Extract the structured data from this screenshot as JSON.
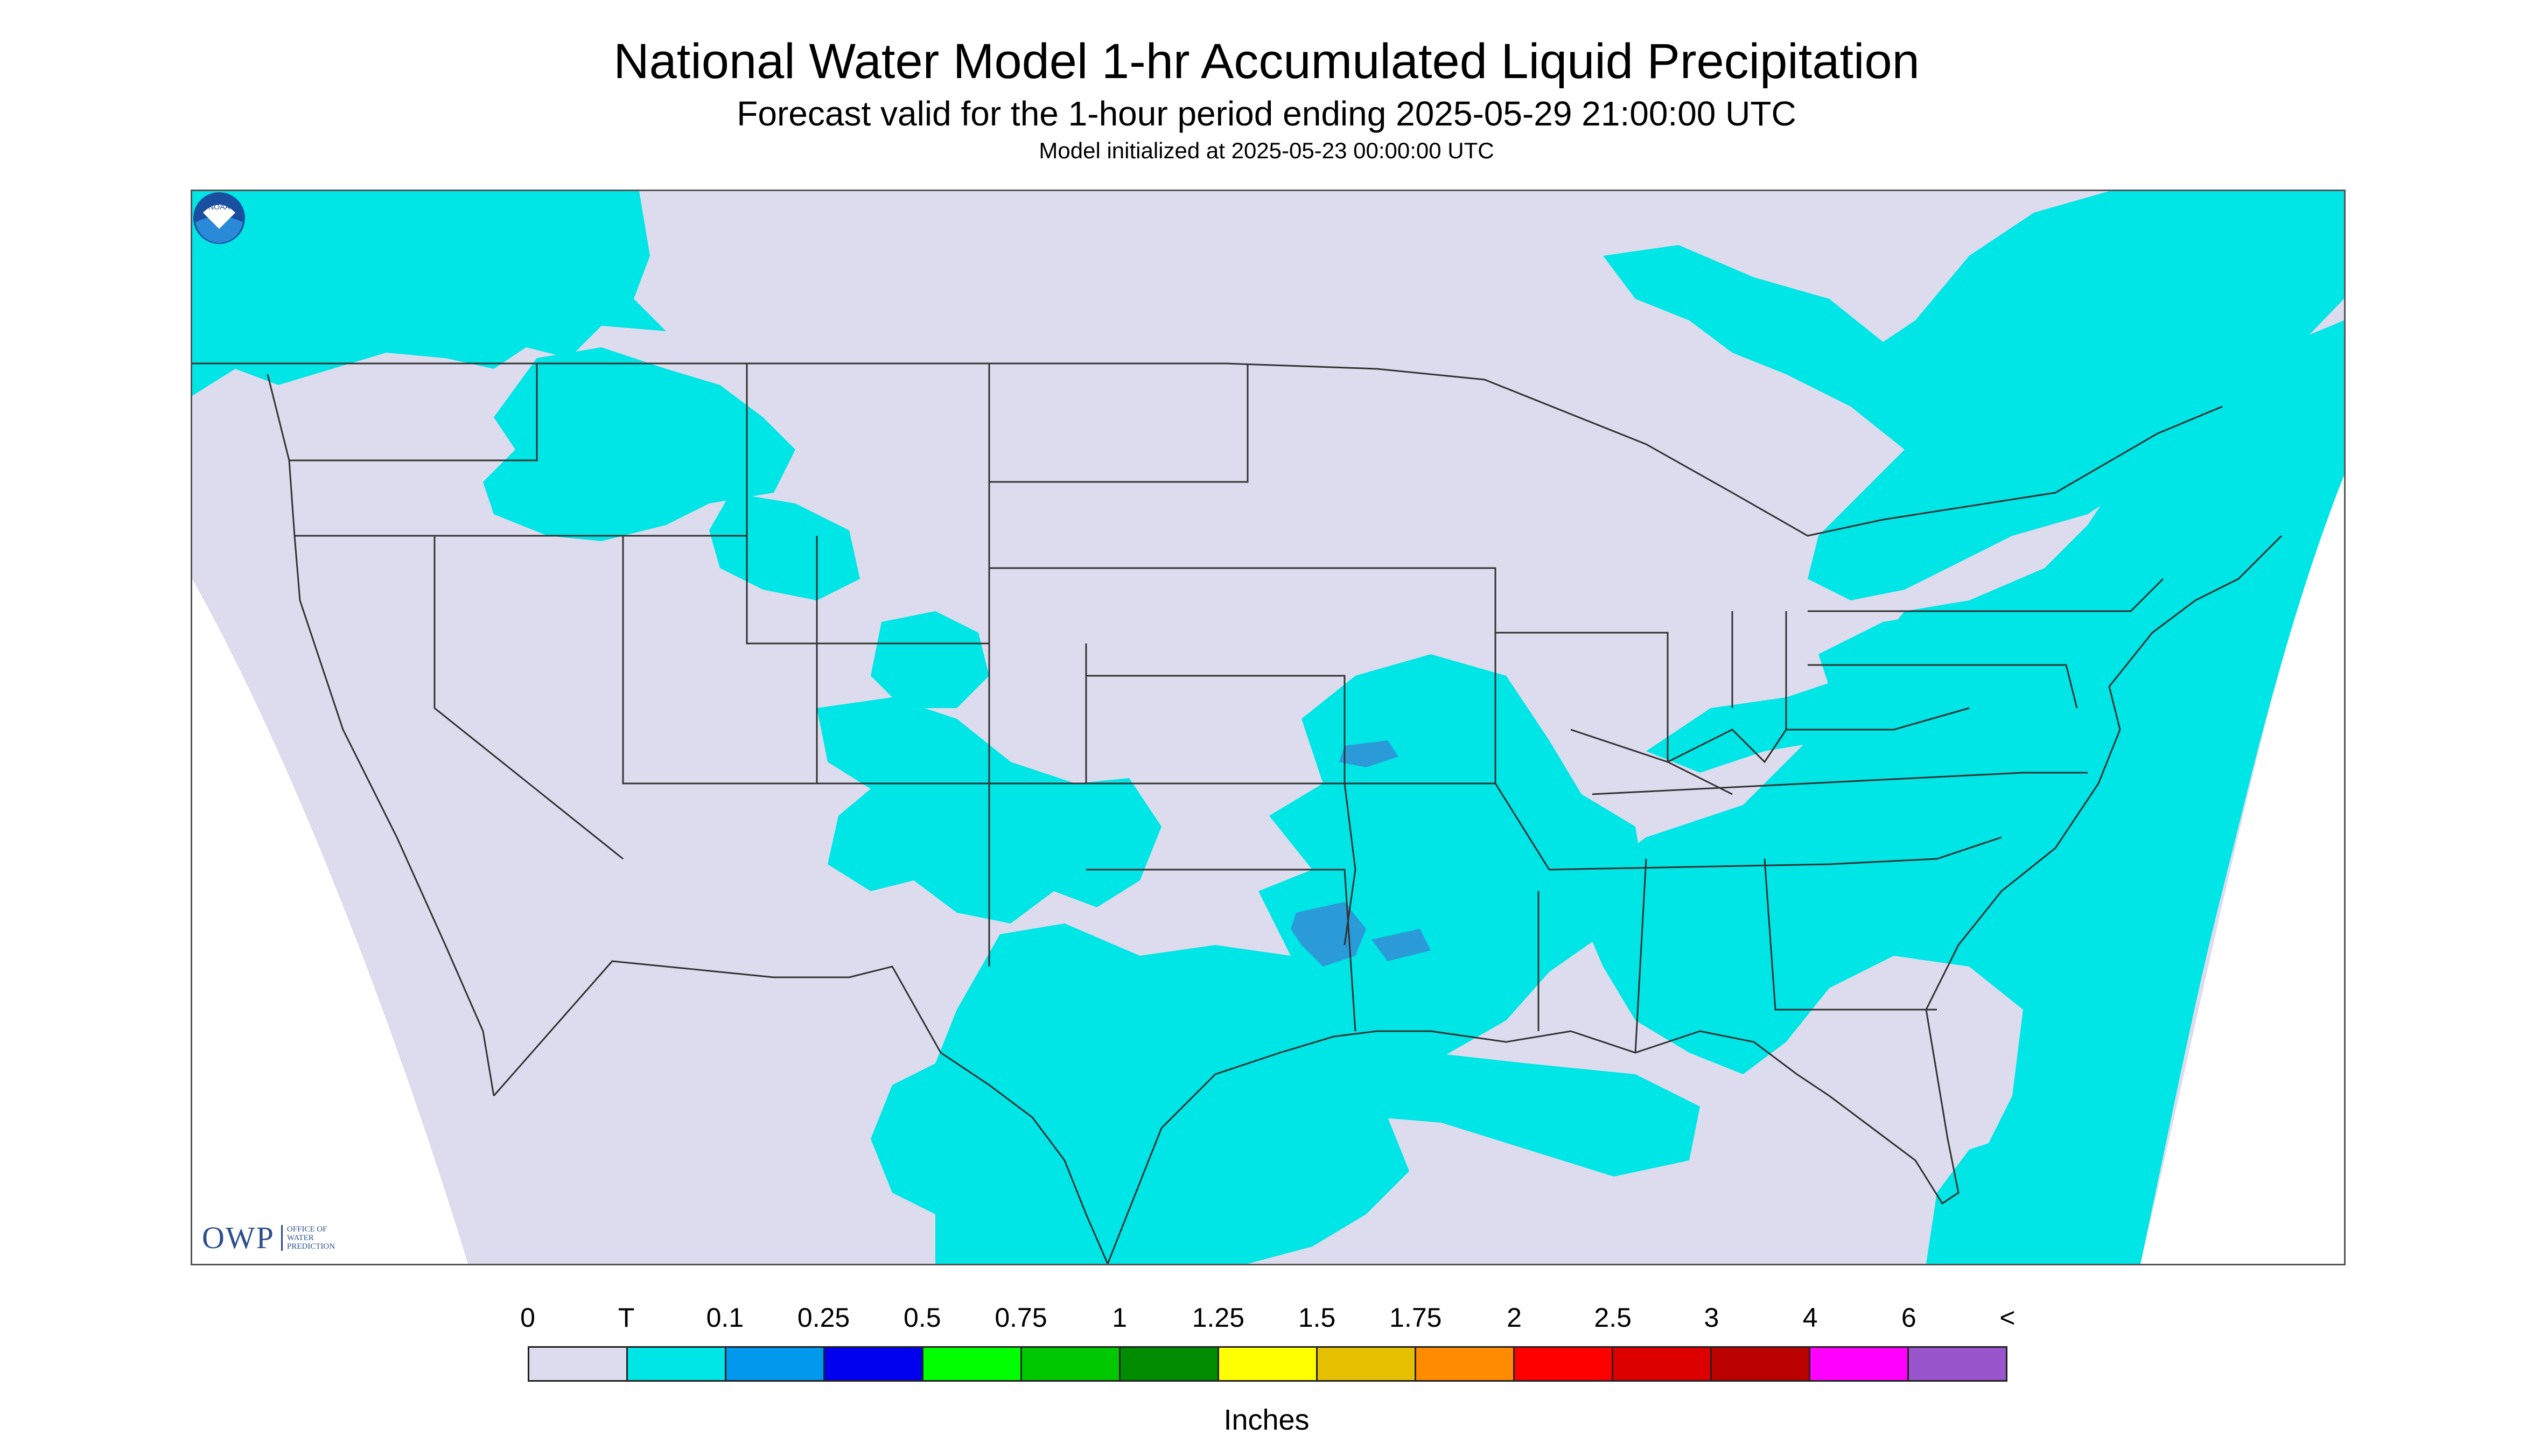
{
  "header": {
    "title": "National Water Model 1-hr Accumulated Liquid Precipitation",
    "subtitle": "Forecast valid for the 1-hour period ending 2025-05-29 21:00:00 UTC",
    "init": "Model initialized at 2025-05-23 00:00:00 UTC"
  },
  "logos": {
    "owp_text": "OWP",
    "owp_sub": [
      "OFFICE OF",
      "WATER",
      "PREDICTION"
    ],
    "noaa_text": "NOAA"
  },
  "legend": {
    "labels": [
      "0",
      "T",
      "0.1",
      "0.25",
      "0.5",
      "0.75",
      "1",
      "1.25",
      "1.5",
      "1.75",
      "2",
      "2.5",
      "3",
      "4",
      "6",
      "<"
    ],
    "colors": [
      "#dcdcee",
      "#00e5e5",
      "#0099ee",
      "#0000ee",
      "#00ff00",
      "#00c800",
      "#008c00",
      "#ffff00",
      "#e5c000",
      "#ff8c00",
      "#ff0000",
      "#dd0000",
      "#bb0000",
      "#ff00ff",
      "#9955cc"
    ],
    "units": "Inches"
  },
  "map": {
    "background": "#dcdcee",
    "outside_domain": "#ffffff",
    "precip_light": "#00e5e5",
    "precip_moderate": "#2a9ad8",
    "boundary": "#333333"
  }
}
